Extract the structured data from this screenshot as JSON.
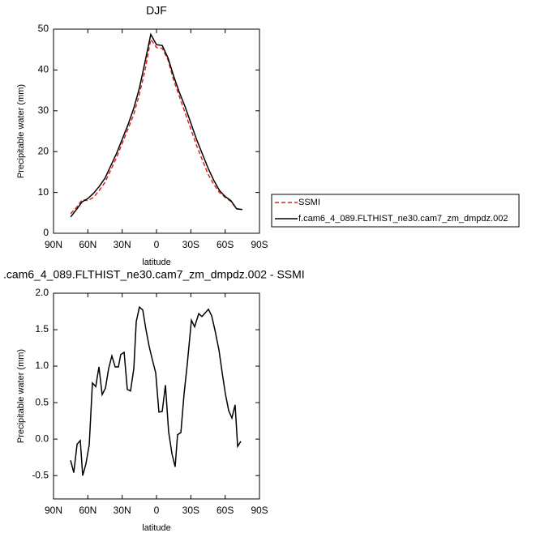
{
  "chart_data": [
    {
      "type": "line",
      "title": "DJF",
      "x_label": "latitude",
      "y_label": "Precipitable water (mm)",
      "x": [
        75,
        70,
        65,
        60,
        55,
        50,
        45,
        40,
        35,
        30,
        25,
        20,
        15,
        10,
        5,
        0,
        -5,
        -10,
        -15,
        -20,
        -25,
        -30,
        -35,
        -40,
        -45,
        -50,
        -55,
        -60,
        -65,
        -70,
        -75
      ],
      "series": [
        {
          "name": "SSMI",
          "color": "#e0201b",
          "dash": true,
          "values": [
            4.8,
            6.3,
            8.2,
            8.0,
            8.8,
            10.5,
            12.5,
            15.5,
            18.5,
            22,
            25.5,
            29,
            34,
            40,
            47.5,
            45.5,
            45.3,
            42.5,
            37.5,
            33.5,
            29.5,
            25.5,
            21.5,
            18,
            14.5,
            12,
            10,
            8.8,
            7.8,
            6.0,
            5.8
          ]
        },
        {
          "name": "f.cam6_4_089.FLTHIST_ne30.cam7_zm_dmpdz.002",
          "color": "#000000",
          "dash": false,
          "values": [
            4.0,
            5.8,
            7.7,
            8.5,
            9.8,
            11.5,
            13.5,
            16.5,
            19.5,
            23,
            26.5,
            30.5,
            35.5,
            42,
            48.7,
            46.2,
            46,
            43,
            38.5,
            34.5,
            31,
            27,
            23,
            19.5,
            16,
            13,
            10.5,
            9,
            8,
            6,
            5.8
          ]
        }
      ],
      "xlim": [
        90,
        -90
      ],
      "xticks": [
        {
          "value": 90,
          "label": "90N"
        },
        {
          "value": 60,
          "label": "60N"
        },
        {
          "value": 30,
          "label": "30N"
        },
        0,
        {
          "value": -30,
          "label": "30S"
        },
        {
          "value": -60,
          "label": "60S"
        },
        {
          "value": -90,
          "label": "90S"
        }
      ],
      "ylim": [
        0,
        50
      ],
      "yticks": [
        0,
        10,
        20,
        30,
        40,
        50
      ],
      "legend": "outside-right"
    },
    {
      "type": "line",
      "title": ".cam6_4_089.FLTHIST_ne30.cam7_zm_dmpdz.002 - SSMI",
      "x_label": "latitude",
      "y_label": "Precipitable water (mm)",
      "x": [
        75.1,
        72.3,
        69.4,
        66.6,
        64.5,
        61.7,
        58.8,
        56,
        53.1,
        50.3,
        47.5,
        44.6,
        41.8,
        39,
        36.1,
        33.3,
        31.2,
        28.3,
        25.5,
        22.7,
        19.8,
        17.7,
        14.9,
        12,
        9.2,
        6.4,
        3.5,
        0.7,
        -2.1,
        -5,
        -7.8,
        -10.6,
        -13.5,
        -16.3,
        -18.4,
        -21.3,
        -24.1,
        -26.9,
        -30.5,
        -33.3,
        -36.9,
        -39.7,
        -42.5,
        -45.4,
        -48.2,
        -51,
        -54.6,
        -57.4,
        -60.2,
        -63.1,
        -65.9,
        -68.7,
        -70.9,
        -73.7
      ],
      "series": [
        {
          "color": "#000000",
          "dash": false,
          "values": [
            -0.29,
            -0.46,
            -0.07,
            -0.02,
            -0.5,
            -0.34,
            -0.08,
            0.77,
            0.72,
            0.99,
            0.61,
            0.7,
            0.97,
            1.14,
            0.99,
            0.99,
            1.16,
            1.19,
            0.68,
            0.66,
            0.97,
            1.61,
            1.81,
            1.77,
            1.5,
            1.27,
            1.08,
            0.91,
            0.37,
            0.38,
            0.74,
            0.1,
            -0.2,
            -0.38,
            0.06,
            0.09,
            0.62,
            1.03,
            1.63,
            1.54,
            1.72,
            1.68,
            1.73,
            1.78,
            1.69,
            1.5,
            1.22,
            0.91,
            0.62,
            0.39,
            0.29,
            0.47,
            -0.1,
            -0.03
          ]
        }
      ],
      "xlim": [
        90,
        -90
      ],
      "xticks": [
        {
          "value": 90,
          "label": "90N"
        },
        {
          "value": 60,
          "label": "60N"
        },
        {
          "value": 30,
          "label": "30N"
        },
        0,
        {
          "value": -30,
          "label": "30S"
        },
        {
          "value": -60,
          "label": "60S"
        },
        {
          "value": -90,
          "label": "90S"
        }
      ],
      "ylim": [
        -0.82,
        2.0
      ],
      "yticks": [
        -0.5,
        {
          "value": 0,
          "label": "0.0"
        },
        0.5,
        {
          "value": 1,
          "label": "1.0"
        },
        1.5,
        {
          "value": 2,
          "label": "2.0"
        }
      ]
    }
  ]
}
